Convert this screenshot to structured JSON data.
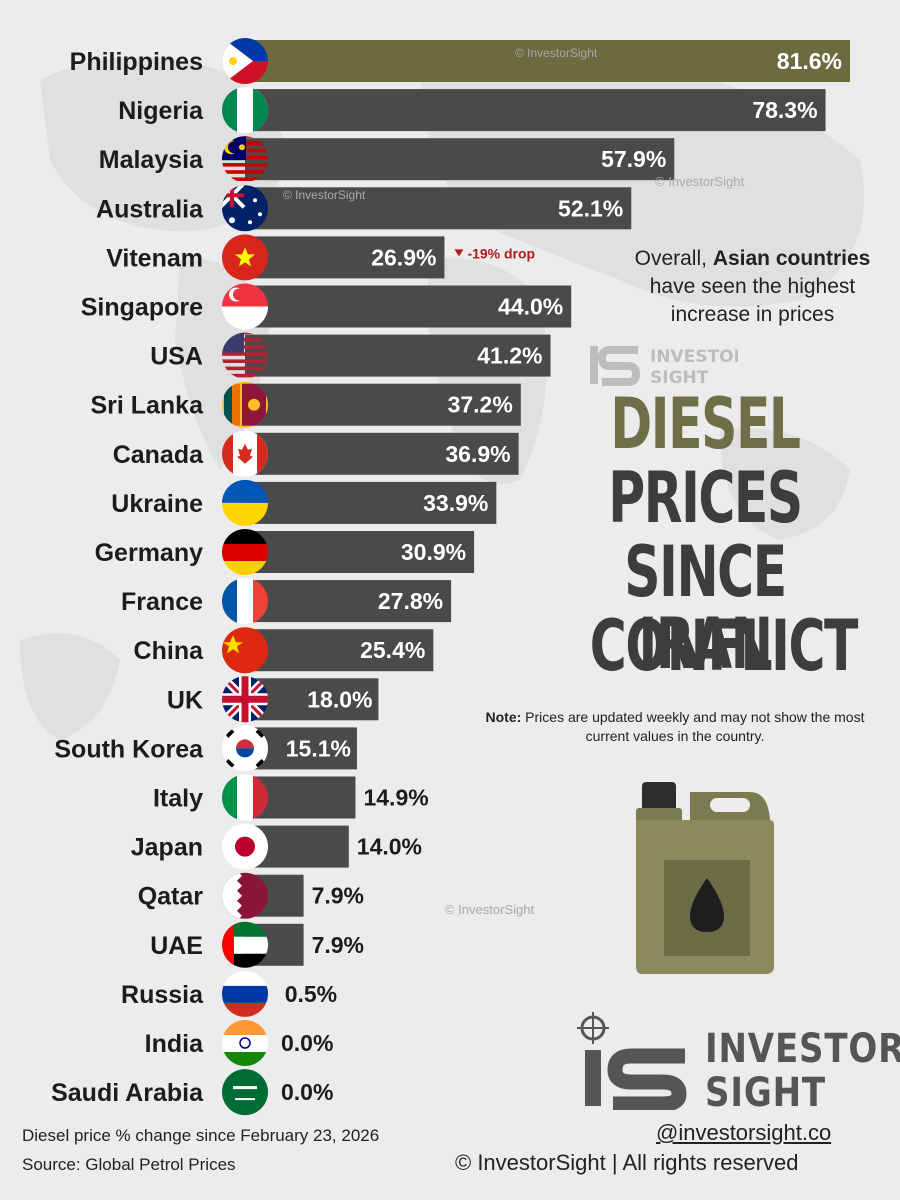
{
  "chart_data": {
    "type": "bar",
    "orientation": "horizontal",
    "title": "DIESEL PRICES SINCE IRAN CONFLICT",
    "categories": [
      "Philippines",
      "Nigeria",
      "Malaysia",
      "Australia",
      "Vitenam",
      "Singapore",
      "USA",
      "Sri Lanka",
      "Canada",
      "Ukraine",
      "Germany",
      "France",
      "China",
      "UK",
      "South Korea",
      "Italy",
      "Japan",
      "Qatar",
      "UAE",
      "Russia",
      "India",
      "Saudi Arabia"
    ],
    "values": [
      81.6,
      78.3,
      57.9,
      52.1,
      26.9,
      44.0,
      41.2,
      37.2,
      36.9,
      33.9,
      30.9,
      27.8,
      25.4,
      18.0,
      15.1,
      14.9,
      14.0,
      7.9,
      7.9,
      0.5,
      0.0,
      0.0
    ],
    "value_labels": [
      "81.6%",
      "78.3%",
      "57.9%",
      "52.1%",
      "26.9%",
      "44.0%",
      "41.2%",
      "37.2%",
      "36.9%",
      "33.9%",
      "30.9%",
      "27.8%",
      "25.4%",
      "18.0%",
      "15.1%",
      "14.9%",
      "14.0%",
      "7.9%",
      "7.9%",
      "0.5%",
      "0.0%",
      "0.0%"
    ],
    "unit": "%",
    "highlight_index": 0,
    "annotation": {
      "index": 4,
      "text": "-19% drop"
    },
    "xlim": [
      0,
      85
    ]
  },
  "headline": {
    "line1": "DIESEL",
    "line2": "PRICES",
    "line3": "SINCE IRAN",
    "line4": "CONFLICT"
  },
  "subtitle": {
    "prefix": "Overall, ",
    "bold": "Asian countries",
    "rest": "have seen the highest increase in prices"
  },
  "note": {
    "label": "Note:",
    "text": " Prices are updated weekly and may not show the most current values in the country."
  },
  "footer": {
    "caption": "Diesel price % change since February 23, 2026",
    "source": "Source: Global Petrol Prices",
    "handle": "@investorsight.co",
    "copyright": "© InvestorSight |  All rights reserved"
  },
  "brand": {
    "line1": "INVESTOR",
    "line2": "SIGHT",
    "logo_text": "IS"
  },
  "watermark": {
    "text": "© InvestorSight",
    "logo_line1": "INVESTOR",
    "logo_line2": "SIGHT"
  },
  "colors": {
    "bar": "#4a4a4a",
    "bar_highlight": "#6b6b3f",
    "headline_olive": "#6e6e48",
    "headline_dark": "#3d3d3d",
    "drop_red": "#b01c1c",
    "background": "#ececec"
  },
  "icons": {
    "canister": "fuel-canister-icon",
    "logo": "investorsight-logo-icon"
  }
}
